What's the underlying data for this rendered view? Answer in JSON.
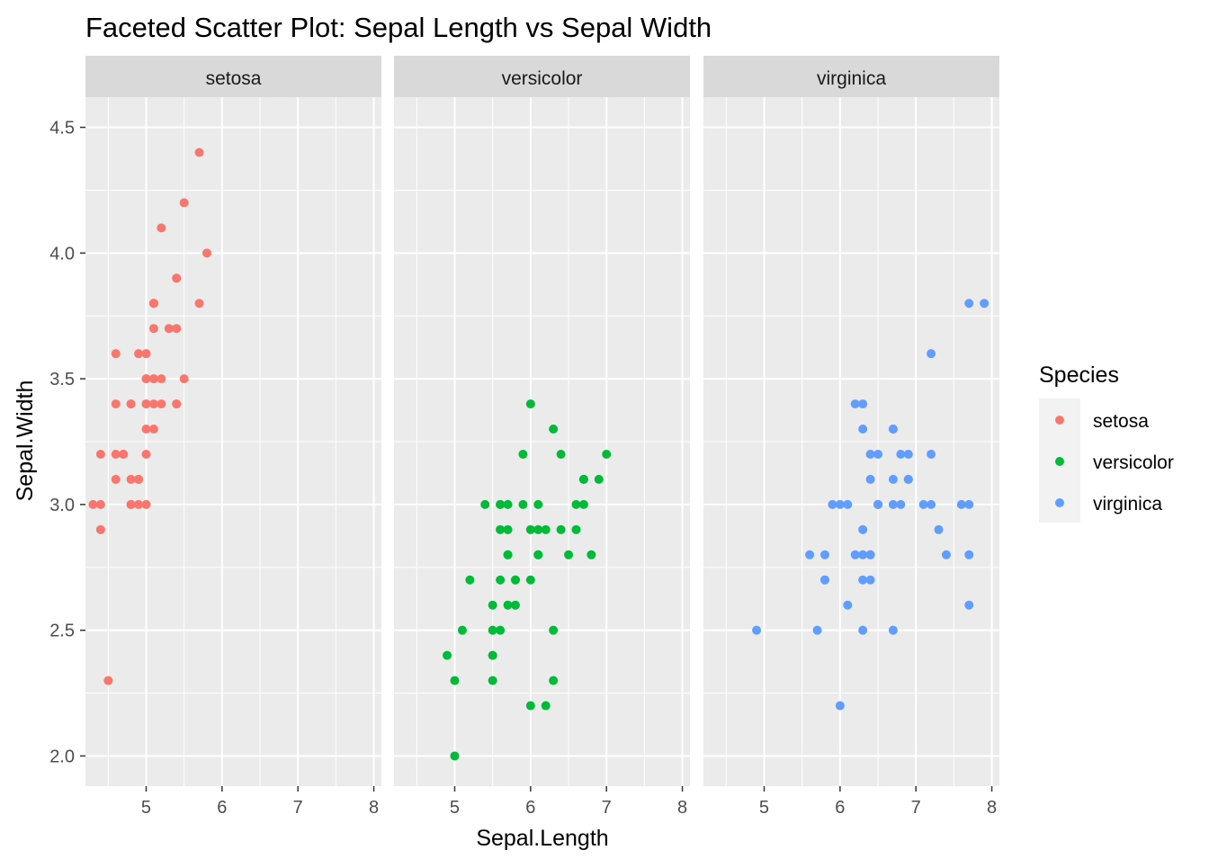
{
  "chart_data": {
    "type": "scatter",
    "title": "Faceted Scatter Plot: Sepal Length vs Sepal Width",
    "xlabel": "Sepal.Length",
    "ylabel": "Sepal.Width",
    "xlim": [
      4.2,
      8.1
    ],
    "ylim": [
      1.88,
      4.62
    ],
    "x_ticks": [
      5,
      6,
      7,
      8
    ],
    "y_ticks": [
      2.0,
      2.5,
      3.0,
      3.5,
      4.0,
      4.5
    ],
    "y_tick_labels": [
      "2.0",
      "2.5",
      "3.0",
      "3.5",
      "4.0",
      "4.5"
    ],
    "x_tick_labels": [
      "5",
      "6",
      "7",
      "8"
    ],
    "grid": true,
    "legend": {
      "title": "Species",
      "position": "right"
    },
    "panel_background": "#ebebeb",
    "strip_background": "#d9d9d9",
    "series": [
      {
        "name": "setosa",
        "color": "#f8766d",
        "points": [
          [
            5.1,
            3.5
          ],
          [
            4.9,
            3.0
          ],
          [
            4.7,
            3.2
          ],
          [
            4.6,
            3.1
          ],
          [
            5.0,
            3.6
          ],
          [
            5.4,
            3.9
          ],
          [
            4.6,
            3.4
          ],
          [
            5.0,
            3.4
          ],
          [
            4.4,
            2.9
          ],
          [
            4.9,
            3.1
          ],
          [
            5.4,
            3.7
          ],
          [
            4.8,
            3.4
          ],
          [
            4.8,
            3.0
          ],
          [
            4.3,
            3.0
          ],
          [
            5.8,
            4.0
          ],
          [
            5.7,
            4.4
          ],
          [
            5.4,
            3.9
          ],
          [
            5.1,
            3.5
          ],
          [
            5.7,
            3.8
          ],
          [
            5.1,
            3.8
          ],
          [
            5.4,
            3.4
          ],
          [
            5.1,
            3.7
          ],
          [
            4.6,
            3.6
          ],
          [
            5.1,
            3.3
          ],
          [
            4.8,
            3.4
          ],
          [
            5.0,
            3.0
          ],
          [
            5.0,
            3.4
          ],
          [
            5.2,
            3.5
          ],
          [
            5.2,
            3.4
          ],
          [
            4.7,
            3.2
          ],
          [
            4.8,
            3.1
          ],
          [
            5.4,
            3.4
          ],
          [
            5.2,
            4.1
          ],
          [
            5.5,
            4.2
          ],
          [
            4.9,
            3.1
          ],
          [
            5.0,
            3.2
          ],
          [
            5.5,
            3.5
          ],
          [
            4.9,
            3.6
          ],
          [
            4.4,
            3.0
          ],
          [
            5.1,
            3.4
          ],
          [
            5.0,
            3.5
          ],
          [
            4.5,
            2.3
          ],
          [
            4.4,
            3.2
          ],
          [
            5.0,
            3.5
          ],
          [
            5.1,
            3.8
          ],
          [
            4.8,
            3.0
          ],
          [
            5.1,
            3.8
          ],
          [
            4.6,
            3.2
          ],
          [
            5.3,
            3.7
          ],
          [
            5.0,
            3.3
          ]
        ]
      },
      {
        "name": "versicolor",
        "color": "#00ba38",
        "points": [
          [
            7.0,
            3.2
          ],
          [
            6.4,
            3.2
          ],
          [
            6.9,
            3.1
          ],
          [
            5.5,
            2.3
          ],
          [
            6.5,
            2.8
          ],
          [
            5.7,
            2.8
          ],
          [
            6.3,
            3.3
          ],
          [
            4.9,
            2.4
          ],
          [
            6.6,
            2.9
          ],
          [
            5.2,
            2.7
          ],
          [
            5.0,
            2.0
          ],
          [
            5.9,
            3.0
          ],
          [
            6.0,
            2.2
          ],
          [
            6.1,
            2.9
          ],
          [
            5.6,
            2.9
          ],
          [
            6.7,
            3.1
          ],
          [
            5.6,
            3.0
          ],
          [
            5.8,
            2.7
          ],
          [
            6.2,
            2.2
          ],
          [
            5.6,
            2.5
          ],
          [
            5.9,
            3.2
          ],
          [
            6.1,
            2.8
          ],
          [
            6.3,
            2.5
          ],
          [
            6.1,
            2.8
          ],
          [
            6.4,
            2.9
          ],
          [
            6.6,
            3.0
          ],
          [
            6.8,
            2.8
          ],
          [
            6.7,
            3.0
          ],
          [
            6.0,
            2.9
          ],
          [
            5.7,
            2.6
          ],
          [
            5.5,
            2.4
          ],
          [
            5.5,
            2.4
          ],
          [
            5.8,
            2.7
          ],
          [
            6.0,
            2.7
          ],
          [
            5.4,
            3.0
          ],
          [
            6.0,
            3.4
          ],
          [
            6.7,
            3.1
          ],
          [
            6.3,
            2.3
          ],
          [
            5.6,
            3.0
          ],
          [
            5.5,
            2.5
          ],
          [
            5.5,
            2.6
          ],
          [
            6.1,
            3.0
          ],
          [
            5.8,
            2.6
          ],
          [
            5.0,
            2.3
          ],
          [
            5.6,
            2.7
          ],
          [
            5.7,
            3.0
          ],
          [
            5.7,
            2.9
          ],
          [
            6.2,
            2.9
          ],
          [
            5.1,
            2.5
          ],
          [
            5.7,
            2.8
          ]
        ]
      },
      {
        "name": "virginica",
        "color": "#619cff",
        "points": [
          [
            6.3,
            3.3
          ],
          [
            5.8,
            2.7
          ],
          [
            7.1,
            3.0
          ],
          [
            6.3,
            2.9
          ],
          [
            6.5,
            3.0
          ],
          [
            7.6,
            3.0
          ],
          [
            4.9,
            2.5
          ],
          [
            7.3,
            2.9
          ],
          [
            6.7,
            2.5
          ],
          [
            7.2,
            3.6
          ],
          [
            6.5,
            3.2
          ],
          [
            6.4,
            2.7
          ],
          [
            6.8,
            3.0
          ],
          [
            5.7,
            2.5
          ],
          [
            5.8,
            2.8
          ],
          [
            6.4,
            3.2
          ],
          [
            6.5,
            3.0
          ],
          [
            7.7,
            3.8
          ],
          [
            7.7,
            2.6
          ],
          [
            6.0,
            2.2
          ],
          [
            6.9,
            3.2
          ],
          [
            5.6,
            2.8
          ],
          [
            7.7,
            2.8
          ],
          [
            6.3,
            2.7
          ],
          [
            6.7,
            3.3
          ],
          [
            7.2,
            3.2
          ],
          [
            6.2,
            2.8
          ],
          [
            6.1,
            3.0
          ],
          [
            6.4,
            2.8
          ],
          [
            7.2,
            3.0
          ],
          [
            7.4,
            2.8
          ],
          [
            7.9,
            3.8
          ],
          [
            6.4,
            2.8
          ],
          [
            6.3,
            2.8
          ],
          [
            6.1,
            2.6
          ],
          [
            7.7,
            3.0
          ],
          [
            6.3,
            3.4
          ],
          [
            6.4,
            3.1
          ],
          [
            6.0,
            3.0
          ],
          [
            6.9,
            3.1
          ],
          [
            6.7,
            3.1
          ],
          [
            6.9,
            3.1
          ],
          [
            5.8,
            2.7
          ],
          [
            6.8,
            3.2
          ],
          [
            6.7,
            3.3
          ],
          [
            6.7,
            3.0
          ],
          [
            6.3,
            2.5
          ],
          [
            6.5,
            3.0
          ],
          [
            6.2,
            3.4
          ],
          [
            5.9,
            3.0
          ]
        ]
      }
    ]
  }
}
